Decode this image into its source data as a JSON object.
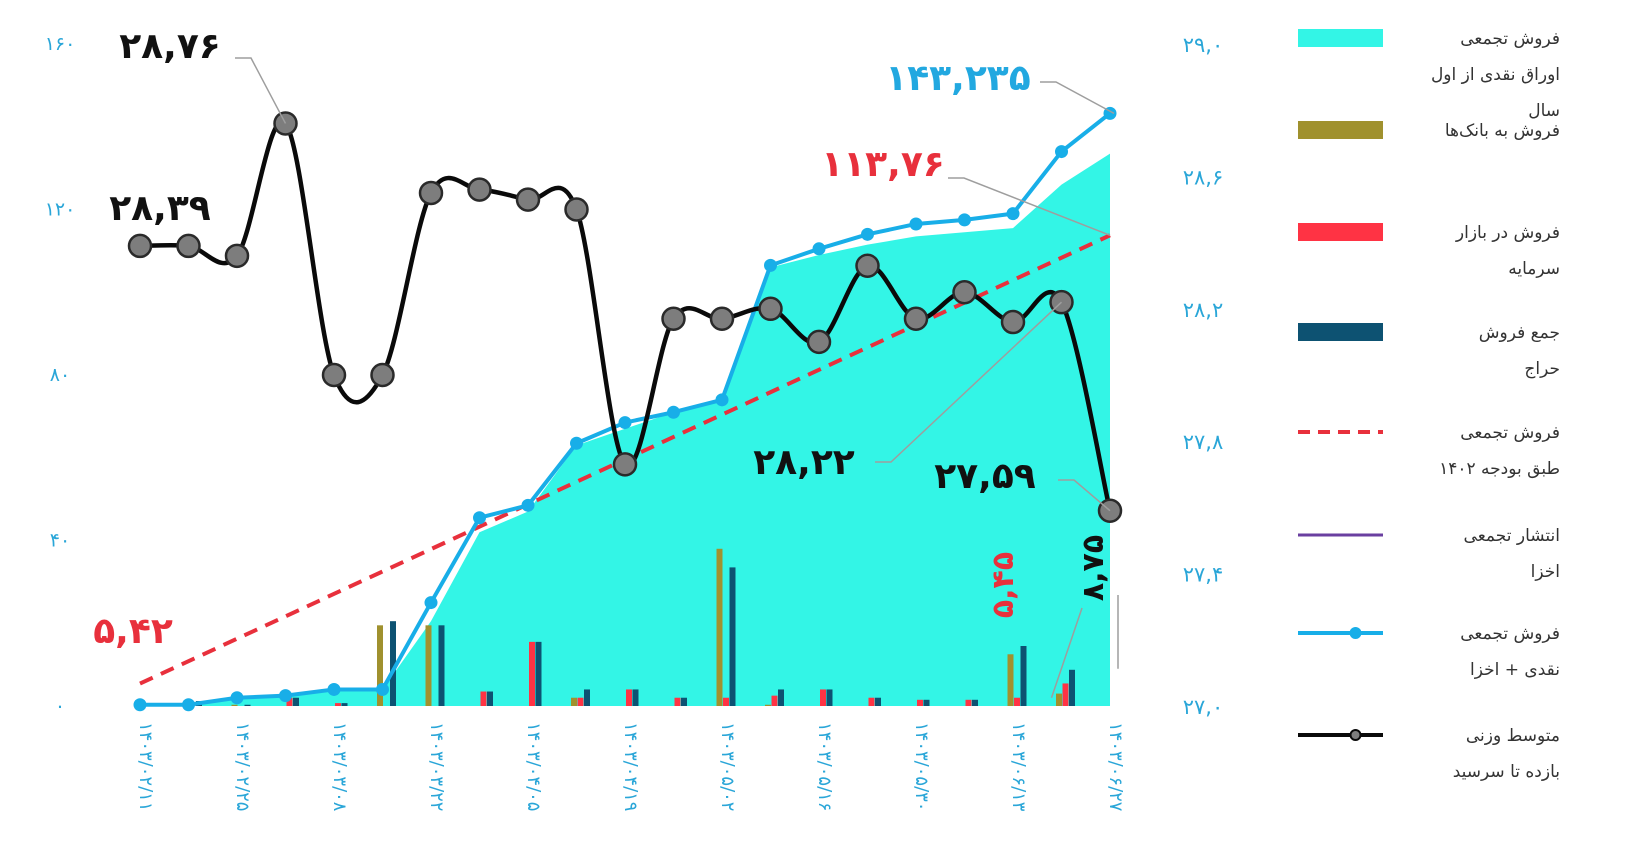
{
  "chart_data": {
    "type": "bar",
    "title": "",
    "left_axis": {
      "ylim": [
        0,
        160
      ],
      "ticks": [
        0,
        40,
        80,
        120,
        160
      ],
      "tick_labels": [
        "۰",
        "۴۰",
        "۸۰",
        "۱۲۰",
        "۱۶۰"
      ]
    },
    "right_axis": {
      "ylim": [
        27.0,
        29.0
      ],
      "ticks": [
        27.0,
        27.4,
        27.8,
        28.2,
        28.6,
        29.0
      ],
      "tick_labels": [
        "۲۷,۰",
        "۲۷,۴",
        "۲۷,۸",
        "۲۸,۲",
        "۲۸,۶",
        "۲۹,۰"
      ]
    },
    "x_tick_labels": [
      "۱۴۰۳/۰۲/۱۱",
      "۱۴۰۳/۰۲/۲۵",
      "۱۴۰۳/۰۳/۰۸",
      "۱۴۰۳/۰۳/۲۲",
      "۱۴۰۳/۰۴/۰۵",
      "۱۴۰۳/۰۴/۱۹",
      "۱۴۰۳/۰۵/۰۲",
      "۱۴۰۳/۰۵/۱۶",
      "۱۴۰۳/۰۵/۳۰",
      "۱۴۰۳/۰۶/۱۳",
      "۱۴۰۳/۰۶/۲۷"
    ],
    "x_tick_index": [
      0,
      2,
      4,
      6,
      8,
      10,
      12,
      14,
      16,
      18,
      20
    ],
    "n_points": 21,
    "series": [
      {
        "name": "فروش تجمعی اوراق نقدی از اول سال",
        "kind": "area",
        "axis": "left",
        "color": "#33f5e6",
        "values": [
          0.3,
          0.3,
          2.0,
          2.5,
          4.0,
          4.0,
          20.5,
          42.0,
          47.0,
          63.0,
          67.0,
          71.0,
          74.5,
          106.0,
          109.0,
          111.5,
          113.5,
          114.5,
          115.5,
          126.0,
          133.5
        ]
      },
      {
        "name": "فروش به بانک‌ها",
        "kind": "bar",
        "axis": "left",
        "color": "#a0912e",
        "values": [
          0,
          0.6,
          0.3,
          0,
          0,
          19.5,
          19.5,
          0,
          0,
          2.0,
          0,
          0,
          38.0,
          0.3,
          0,
          0,
          0,
          0,
          12.5,
          3.0,
          0
        ]
      },
      {
        "name": "فروش در بازار سرمایه",
        "kind": "bar",
        "axis": "left",
        "color": "#ff3344",
        "values": [
          0,
          0.6,
          0,
          2.0,
          0.7,
          0,
          0,
          3.5,
          15.5,
          2.0,
          4.0,
          2.0,
          2.0,
          2.5,
          4.0,
          2.0,
          1.5,
          1.5,
          2.0,
          5.45,
          0
        ]
      },
      {
        "name": "جمع فروش حراج",
        "kind": "bar",
        "axis": "left",
        "color": "#0d5272",
        "values": [
          0,
          1.2,
          0.3,
          2.0,
          0.7,
          20.5,
          19.5,
          3.5,
          15.5,
          4.0,
          4.0,
          2.0,
          33.5,
          4.0,
          4.0,
          2.0,
          1.5,
          1.5,
          14.5,
          8.75,
          0
        ]
      },
      {
        "name": "فروش تجمعی طبق بودجه ۱۴۰۲",
        "kind": "dashed-line",
        "axis": "left",
        "color": "#e8303c",
        "x": [
          0,
          20
        ],
        "values": [
          5.42,
          113.76
        ]
      },
      {
        "name": "انتشار تجمعی اخزا",
        "kind": "line",
        "axis": "left",
        "color": "#6a3fa0",
        "values": []
      },
      {
        "name": "فروش تجمعی نقدی + اخزا",
        "kind": "line-markers",
        "axis": "left",
        "color": "#18aee8",
        "values": [
          0.3,
          0.3,
          2.0,
          2.5,
          4.0,
          4.0,
          25.0,
          45.5,
          48.5,
          63.5,
          68.5,
          71.0,
          74.0,
          106.5,
          110.5,
          114.0,
          116.5,
          117.5,
          119.0,
          134.0,
          143.235
        ]
      },
      {
        "name": "متوسط وزنی بازده تا سرسید",
        "kind": "line-markers",
        "axis": "right",
        "color": "#0a0a0a",
        "values": [
          28.39,
          28.39,
          28.36,
          28.76,
          28.0,
          28.0,
          28.55,
          28.56,
          28.53,
          28.5,
          27.73,
          28.17,
          28.17,
          28.2,
          28.1,
          28.33,
          28.17,
          28.25,
          28.16,
          28.22,
          27.59
        ]
      }
    ],
    "annotations": [
      {
        "text": "۲۸,۷۶",
        "color": "#111111",
        "series": "متوسط وزنی بازده تا سرسید",
        "index": 3
      },
      {
        "text": "۲۸,۳۹",
        "color": "#111111",
        "series": "متوسط وزنی بازده تا سرسید",
        "index": 0
      },
      {
        "text": "۲۸,۲۲",
        "color": "#111111",
        "series": "متوسط وزنی بازده تا سرسید",
        "index": 19
      },
      {
        "text": "۲۷,۵۹",
        "color": "#111111",
        "series": "متوسط وزنی بازده تا سرسید",
        "index": 20
      },
      {
        "text": "۱۴۳,۲۳۵",
        "color": "#22a8e0",
        "series": "فروش تجمعی نقدی + اخزا",
        "index": 20
      },
      {
        "text": "۱۱۳,۷۶",
        "color": "#e8303c",
        "series": "فروش تجمعی طبق بودجه ۱۴۰۲",
        "index": 20
      },
      {
        "text": "۵,۴۲",
        "color": "#e8303c",
        "series": "فروش تجمعی طبق بودجه ۱۴۰۲",
        "index": 0
      },
      {
        "text": "۵,۴۵",
        "color": "#e8303c",
        "series": "فروش در بازار سرمایه",
        "index": 19
      },
      {
        "text": "۸,۷۵",
        "color": "#111111",
        "series": "جمع فروش حراج",
        "index": 19
      }
    ],
    "legend": {
      "placement": "right",
      "items": [
        {
          "lines": [
            "فروش تجمعی",
            "اوراق نقدی از اول",
            "سال"
          ],
          "swatch": "area",
          "color": "#33f5e6"
        },
        {
          "lines": [
            "فروش به بانک‌ها"
          ],
          "swatch": "bar",
          "color": "#a0912e"
        },
        {
          "lines": [
            "فروش در بازار",
            "سرمایه"
          ],
          "swatch": "bar",
          "color": "#ff3344"
        },
        {
          "lines": [
            "جمع فروش",
            "حراج"
          ],
          "swatch": "bar",
          "color": "#0d5272"
        },
        {
          "lines": [
            "فروش تجمعی",
            "طبق بودجه ۱۴۰۲"
          ],
          "swatch": "dashed",
          "color": "#e8303c"
        },
        {
          "lines": [
            "انتشار تجمعی",
            "اخزا"
          ],
          "swatch": "line",
          "color": "#6a3fa0"
        },
        {
          "lines": [
            "فروش تجمعی",
            "نقدی + اخزا"
          ],
          "swatch": "line-marker",
          "color": "#18aee8"
        },
        {
          "lines": [
            "متوسط وزنی",
            "بازده تا سرسید"
          ],
          "swatch": "line-marker",
          "color": "#0a0a0a"
        }
      ]
    }
  }
}
